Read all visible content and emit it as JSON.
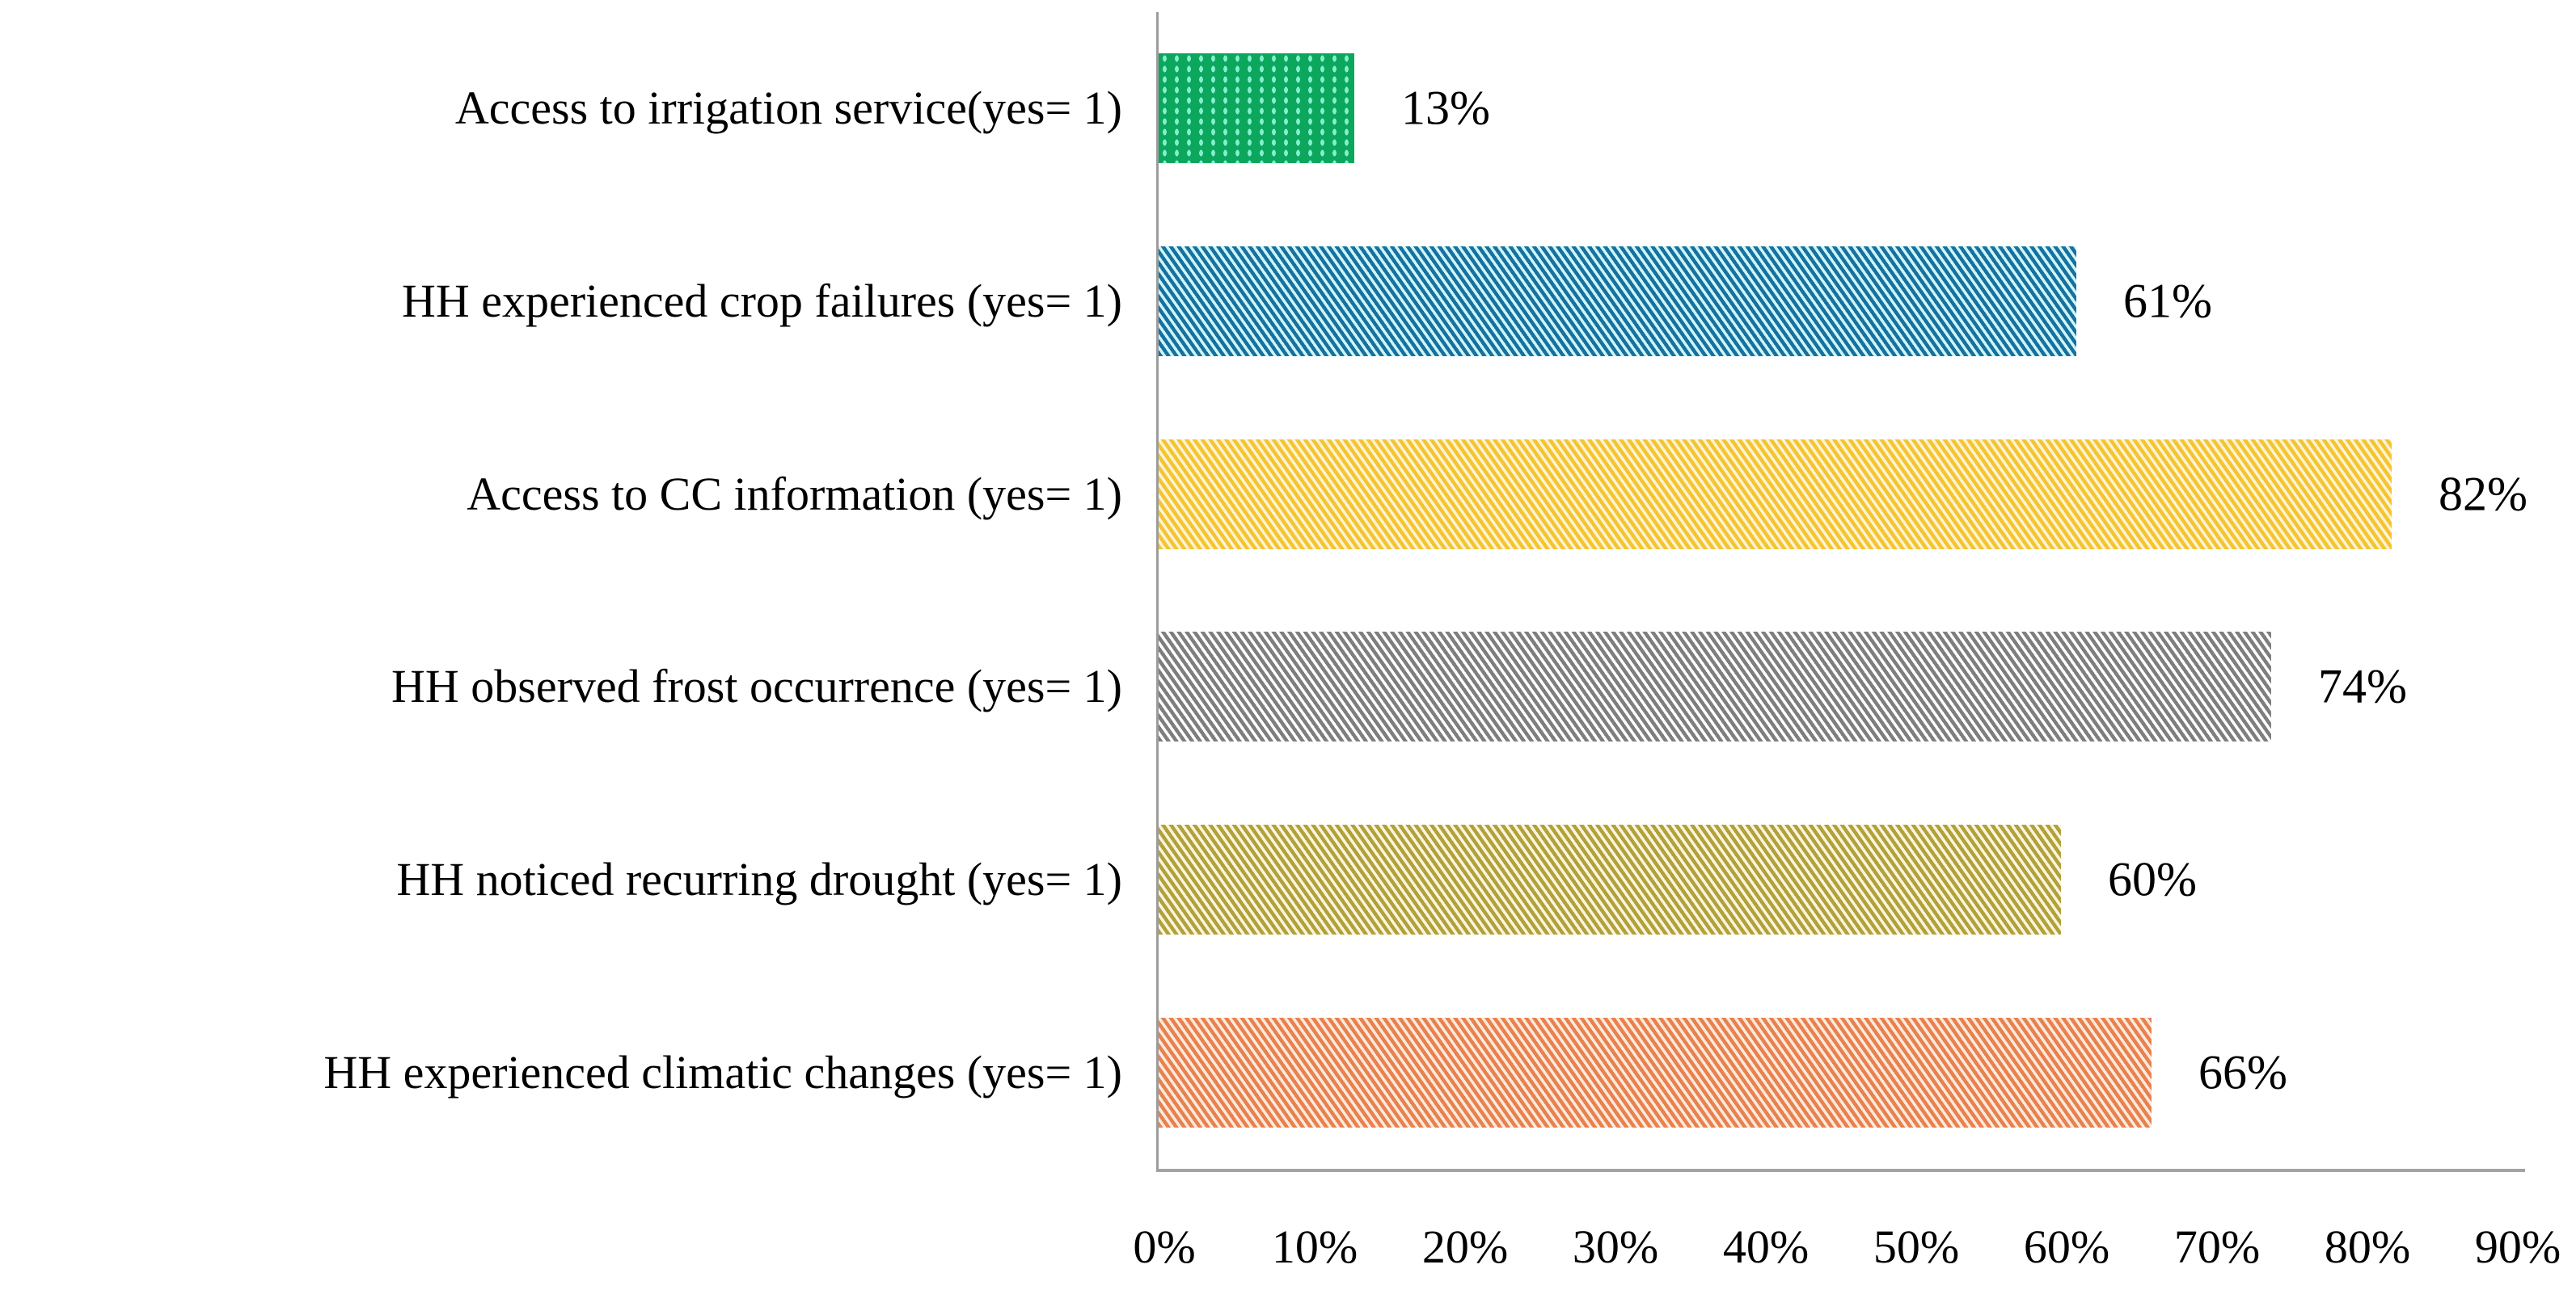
{
  "chart_data": {
    "type": "bar",
    "orientation": "horizontal",
    "order": "top-to-bottom",
    "title": "",
    "xlabel": "",
    "ylabel": "",
    "grid": false,
    "legend": false,
    "xlim": [
      0,
      90
    ],
    "categories": [
      "Access to irrigation service(yes= 1)",
      "HH experienced crop failures (yes= 1)",
      "Access to CC information (yes= 1)",
      "HH observed frost occurrence (yes= 1)",
      "HH noticed recurring drought  (yes= 1)",
      "HH experienced climatic changes (yes= 1)"
    ],
    "values": [
      13,
      61,
      82,
      74,
      60,
      66
    ],
    "data_labels": [
      "13%",
      "61%",
      "82%",
      "74%",
      "60%",
      "66%"
    ],
    "x_ticks": [
      "0%",
      "10%",
      "20%",
      "30%",
      "40%",
      "50%",
      "60%",
      "70%",
      "80%",
      "90%"
    ],
    "bar_styles": [
      {
        "pattern": "dots",
        "fill": "#0CA75D",
        "accent": "#82F0CE"
      },
      {
        "pattern": "diagonal",
        "fill": "#17719E",
        "accent": "#CDF5FA"
      },
      {
        "pattern": "diagonal",
        "fill": "#F4C431",
        "accent": "#FEF3D2"
      },
      {
        "pattern": "diagonal",
        "fill": "#7E7E7E",
        "accent": "#FFFFFF"
      },
      {
        "pattern": "diagonal",
        "fill": "#B2A13A",
        "accent": "#FAF5DE"
      },
      {
        "pattern": "diagonal",
        "fill": "#E8814F",
        "accent": "#FCEADB"
      }
    ],
    "axis_color": "#9C9C9C",
    "text_color": "#000000"
  }
}
